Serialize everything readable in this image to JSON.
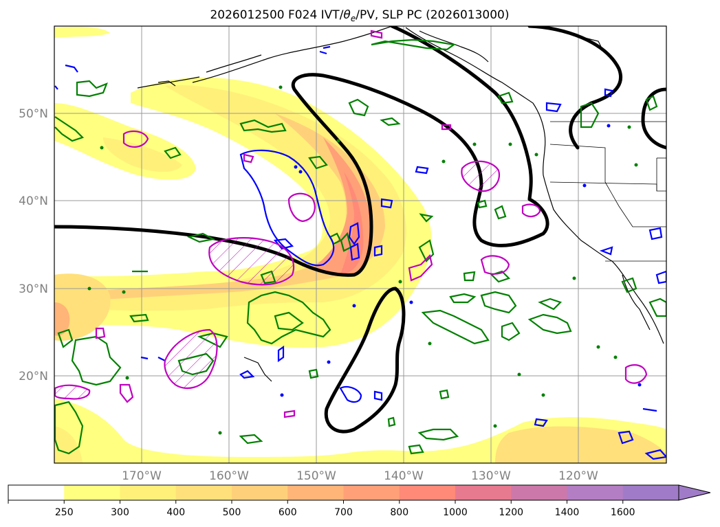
{
  "title_prefix": "2026012500 F024 IVT/",
  "title_theta": "θ",
  "title_sub": "e",
  "title_suffix": "/PV, SLP PC (2026013000)",
  "map": {
    "lon_range": [
      -180,
      -110
    ],
    "lat_range": [
      10,
      60
    ],
    "gridlines": true,
    "lat_labels": [
      "20°N",
      "30°N",
      "40°N",
      "50°N"
    ],
    "lon_labels": [
      "170°W",
      "160°W",
      "150°W",
      "140°W",
      "130°W",
      "120°W"
    ]
  },
  "colorbar": {
    "orientation": "horizontal",
    "extend": "max",
    "levels": [
      "250",
      "300",
      "400",
      "500",
      "600",
      "700",
      "800",
      "1000",
      "1200",
      "1400",
      "1600"
    ],
    "colors": [
      "#ffffff",
      "#ffff80",
      "#fff07a",
      "#ffe07a",
      "#ffd07a",
      "#ffb478",
      "#ffa078",
      "#ff8a78",
      "#e87a90",
      "#cc78aa",
      "#b47ec4",
      "#a07cc8"
    ]
  },
  "contours": {
    "slp_pc": "#000000",
    "theta_e": "#008000",
    "pv_blue": "#0000ff",
    "pv_magenta": "#c000c0"
  }
}
